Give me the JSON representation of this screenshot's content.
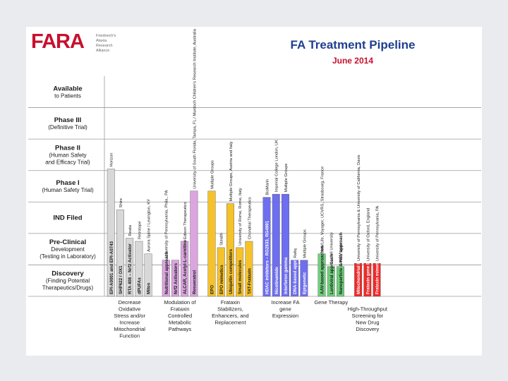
{
  "header": {
    "logo_text": "FARA",
    "logo_tagline": "Friedreich's Ataxia Research Alliance",
    "title": "FA Treatment Pipeline",
    "subtitle": "June 2014"
  },
  "chart_data": {
    "type": "bar",
    "orientation": "vertical",
    "title": "FA Treatment Pipeline",
    "subtitle": "June 2014",
    "stages": [
      {
        "id": "available",
        "lines": [
          "Available",
          "to Patients"
        ]
      },
      {
        "id": "phase3",
        "lines": [
          "Phase III",
          "(Definitive Trial)"
        ]
      },
      {
        "id": "phase2",
        "lines": [
          "Phase II",
          "(Human Safety",
          "and Efficacy Trial)"
        ]
      },
      {
        "id": "phase1",
        "lines": [
          "Phase I",
          "(Human Safety Trial)"
        ]
      },
      {
        "id": "ind",
        "lines": [
          "IND Filed"
        ]
      },
      {
        "id": "preclinical",
        "lines": [
          "Pre-Clinical",
          "Development",
          "(Testing in Laboratory)"
        ]
      },
      {
        "id": "discovery",
        "lines": [
          "Discovery",
          "(Finding Potential",
          "Therapeutics/Drugs)"
        ]
      }
    ],
    "stage_scale": "0 = Discovery ... 6 = Available to Patients",
    "groups": [
      {
        "name": "Decrease Oxidative Stress and/or Increase Mitochondrial Function",
        "color": "#d8d8d8",
        "bars": [
          {
            "label": "EPI-A0001 and EPI-A0743",
            "value": 3.7,
            "top_label": "Horizon"
          },
          {
            "label": "SHP622 / OX1",
            "value": 2.4,
            "top_label": "Shire"
          },
          {
            "label": "RTA 408 – Nrf2 Activator",
            "value": 1.5,
            "top_label": "Reata"
          },
          {
            "label": "dPUFAs",
            "value": 1.4,
            "top_label": "Retrotope"
          },
          {
            "label": "Mitos",
            "value": 1.0,
            "top_label": "Aurora Spine / Lexington, KY"
          }
        ]
      },
      {
        "name": "Modulation of Frataxin Controlled Metabolic Pathways",
        "color": "#dba6e0",
        "bars": [
          {
            "label": "Nutritional approach",
            "value": 0.8,
            "top_label": "University of Pennsylvania, Phila., PA"
          },
          {
            "label": "Nrf2 Activators",
            "value": 0.8,
            "top_label": ""
          },
          {
            "label": "ALCAR, Acetyl-L-carnitine",
            "value": 1.4,
            "top_label": "Edison Therapeutics"
          },
          {
            "label": "Resveratrol",
            "value": 3.0,
            "top_label": "University of South Florida, Tampa, FL / Murdoch Children's Research Institute, Australia"
          }
        ]
      },
      {
        "name": "Frataxin Stabilizers, Enhancers, and Replacement",
        "color": "#f6c22b",
        "bars": [
          {
            "label": "EPO",
            "value": 3.0,
            "top_label": "Multiple Groups"
          },
          {
            "label": "EPO mimetics",
            "value": 1.2,
            "top_label": "Stealth"
          },
          {
            "label": "Ubiquitin competitors",
            "value": 2.6,
            "top_label": "Multiple Groups, Austria and Italy"
          },
          {
            "label": "Small molecules",
            "value": 1.2,
            "top_label": "University of Rome, Rome, Italy"
          },
          {
            "label": "TAT-Frataxin",
            "value": 1.4,
            "top_label": "Chondrial Therapeutics"
          }
        ]
      },
      {
        "name": "Increase FA gene Expression",
        "color": "#6e6ef0",
        "bars": [
          {
            "label": "HDAC inhibitors – RG2833, RG4991",
            "value": 2.8,
            "top_label": "BioMarin"
          },
          {
            "label": "Nicotinamide",
            "value": 2.9,
            "top_label": "Imperial College London, UK"
          },
          {
            "label": "Interferon gamma",
            "value": 2.9,
            "top_label": "Multiple Groups"
          },
          {
            "label": "DNA-based approach",
            "value": 0.8,
            "top_label": "Rafiq"
          },
          {
            "label": "Epigenetic",
            "value": 0.8,
            "top_label": "Multiple Groups"
          }
        ]
      },
      {
        "name": "Gene Therapy",
        "color": "#6fcf7c",
        "bars": [
          {
            "label": "AAV-based approaches",
            "value": 1.0,
            "top_label": "AAVLife, Voyager, UCVRS, Strasbourg, France"
          },
          {
            "label": "Lentiviral approach",
            "value": 0.6,
            "top_label": "Cornell University"
          },
          {
            "label": "Nanoparticle & HSV approach",
            "value": 0.6,
            "top_label": "Weill, Spain"
          }
        ]
      },
      {
        "name": "High-Throughput Screening for New Drug Discovery",
        "color": "#ee2a2a",
        "bars": [
          {
            "label": "Mitochondrial Pathways",
            "value": 0.7,
            "top_label": "University of Pennsylvania & University of California, Davis"
          },
          {
            "label": "Frataxin gene Expression",
            "value": 0.7,
            "top_label": "University of Oxford, England"
          },
          {
            "label": "Frataxin mimetics",
            "value": 0.7,
            "top_label": "University of Pennsylvania, PA"
          }
        ]
      }
    ]
  }
}
